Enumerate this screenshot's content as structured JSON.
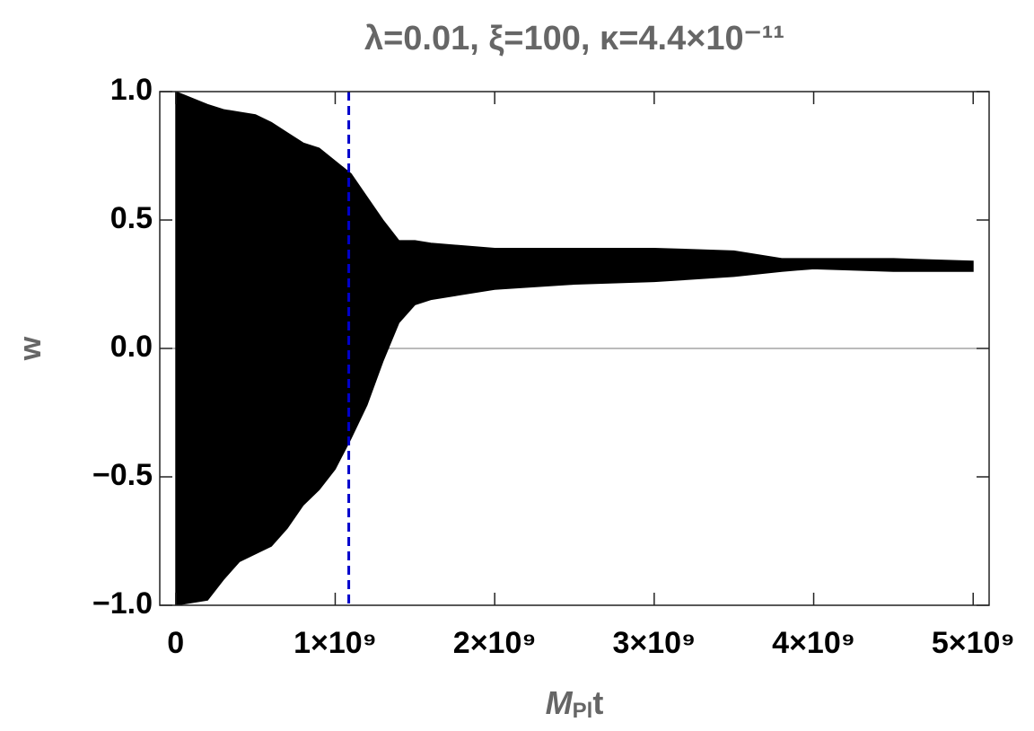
{
  "chart_data": {
    "type": "band",
    "title": "λ=0.01, ξ=100, κ=4.4×10⁻¹¹",
    "ylabel": "w",
    "xlabel": {
      "main": "M",
      "sub": "Pl",
      "after": "t"
    },
    "x": [
      0,
      200000000,
      300000000,
      400000000,
      500000000,
      600000000,
      700000000,
      800000000,
      900000000,
      1000000000,
      1100000000,
      1200000000,
      1300000000,
      1400000000,
      1500000000,
      1600000000,
      1800000000,
      2000000000,
      2500000000,
      3000000000,
      3500000000,
      3800000000,
      4000000000,
      4500000000,
      5000000000
    ],
    "series": [
      {
        "color": "#000000",
        "values": [
          1.0,
          0.95,
          0.93,
          0.92,
          0.91,
          0.88,
          0.84,
          0.8,
          0.78,
          0.73,
          0.68,
          0.59,
          0.5,
          0.42,
          0.42,
          0.41,
          0.4,
          0.39,
          0.39,
          0.39,
          0.38,
          0.35,
          0.35,
          0.35,
          0.34
        ]
      },
      {
        "color": "#000000",
        "values": [
          -1.0,
          -0.98,
          -0.9,
          -0.83,
          -0.8,
          -0.77,
          -0.7,
          -0.61,
          -0.55,
          -0.47,
          -0.35,
          -0.22,
          -0.05,
          0.1,
          0.17,
          0.19,
          0.21,
          0.23,
          0.25,
          0.26,
          0.28,
          0.3,
          0.31,
          0.3,
          0.3
        ]
      }
    ],
    "vline": {
      "x": 1085000000,
      "color": "#0000cc"
    },
    "xlim": [
      -100000000,
      5100000000
    ],
    "ylim": [
      -1.0,
      1.0
    ],
    "xticks": [
      0,
      {
        "value": 1000000000,
        "label": "1×10⁹"
      },
      {
        "value": 2000000000,
        "label": "2×10⁹"
      },
      {
        "value": 3000000000,
        "label": "3×10⁹"
      },
      {
        "value": 4000000000,
        "label": "4×10⁹"
      },
      {
        "value": 5000000000,
        "label": "5×10⁹"
      }
    ],
    "yticks": [
      {
        "value": -1.0,
        "label": "−1.0"
      },
      {
        "value": -0.5,
        "label": "−0.5"
      },
      {
        "value": 0.0,
        "label": "0.0"
      },
      {
        "value": 0.5,
        "label": "0.5"
      },
      {
        "value": 1.0,
        "label": "1.0"
      }
    ]
  }
}
